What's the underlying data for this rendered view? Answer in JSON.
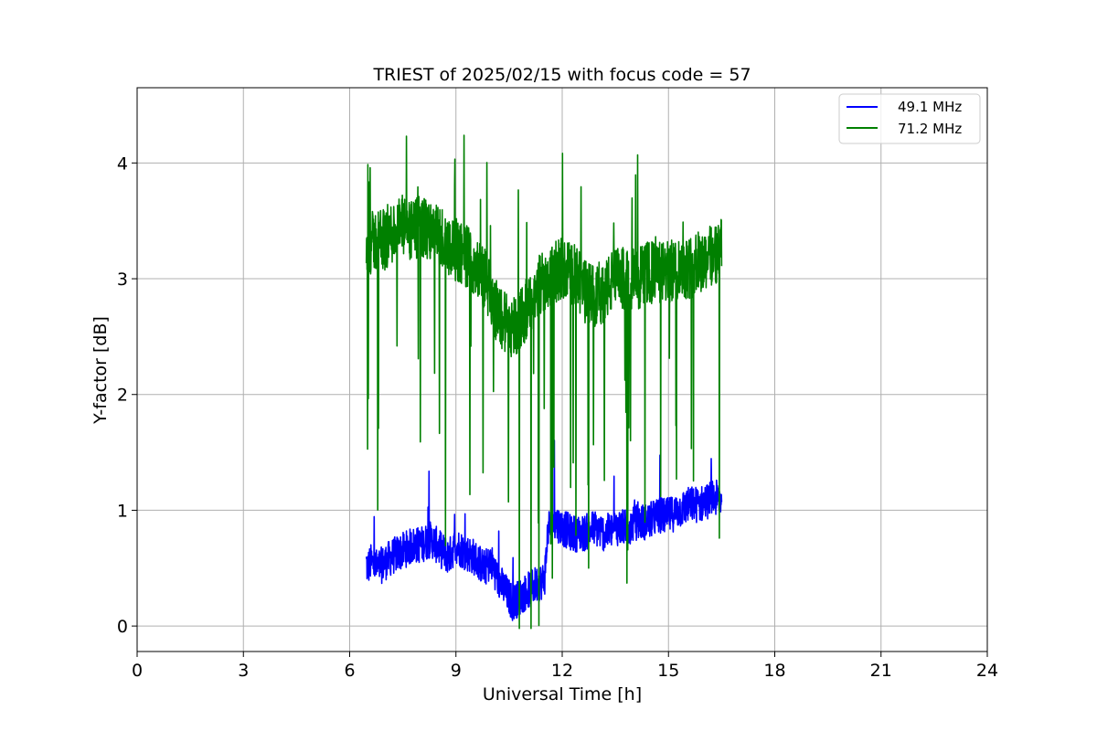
{
  "chart_data": {
    "type": "line",
    "title": "TRIEST of 2025/02/15 with focus code = 57",
    "xlabel": "Universal Time [h]",
    "ylabel": "Y-factor [dB]",
    "xlim": [
      0,
      24
    ],
    "ylim": [
      -0.22,
      4.65
    ],
    "xticks": [
      0,
      3,
      6,
      9,
      12,
      15,
      18,
      21,
      24
    ],
    "xtick_labels": [
      "0",
      "3",
      "6",
      "9",
      "12",
      "15",
      "18",
      "21",
      "24"
    ],
    "yticks": [
      0,
      1,
      2,
      3,
      4
    ],
    "ytick_labels": [
      "0",
      "1",
      "2",
      "3",
      "4"
    ],
    "grid": true,
    "legend_position": "top-right",
    "series": [
      {
        "name": "49.1 MHz",
        "color": "#0000ff",
        "x": [
          6.47,
          6.5,
          6.6,
          6.8,
          7.0,
          7.2,
          7.5,
          7.8,
          8.0,
          8.3,
          8.6,
          8.8,
          9.0,
          9.2,
          9.5,
          9.8,
          10.0,
          10.2,
          10.4,
          10.6,
          10.8,
          11.0,
          11.2,
          11.5,
          11.6,
          11.8,
          12.0,
          12.3,
          12.6,
          12.9,
          13.2,
          13.5,
          13.8,
          14.1,
          14.4,
          14.7,
          15.0,
          15.3,
          15.6,
          15.9,
          16.2,
          16.5
        ],
        "y": [
          0.55,
          0.5,
          0.55,
          0.5,
          0.55,
          0.6,
          0.65,
          0.7,
          0.7,
          0.75,
          0.65,
          0.6,
          0.7,
          0.65,
          0.6,
          0.5,
          0.55,
          0.4,
          0.3,
          0.2,
          0.25,
          0.3,
          0.35,
          0.4,
          0.85,
          0.9,
          0.85,
          0.8,
          0.8,
          0.85,
          0.8,
          0.85,
          0.85,
          0.9,
          0.9,
          0.95,
          0.95,
          1.0,
          1.05,
          1.05,
          1.1,
          1.1
        ],
        "spread": 0.32
      },
      {
        "name": "71.2 MHz",
        "color": "#008000",
        "x": [
          6.47,
          6.6,
          6.8,
          7.0,
          7.2,
          7.5,
          7.8,
          8.0,
          8.3,
          8.6,
          8.8,
          9.0,
          9.3,
          9.6,
          9.9,
          10.1,
          10.3,
          10.5,
          10.7,
          10.9,
          11.1,
          11.3,
          11.5,
          11.8,
          12.0,
          12.3,
          12.6,
          12.9,
          13.2,
          13.5,
          13.8,
          14.1,
          14.4,
          14.7,
          15.0,
          15.3,
          15.6,
          15.9,
          16.2,
          16.5
        ],
        "y": [
          3.3,
          3.3,
          3.35,
          3.35,
          3.4,
          3.45,
          3.4,
          3.45,
          3.4,
          3.35,
          3.3,
          3.25,
          3.2,
          3.1,
          2.95,
          2.75,
          2.65,
          2.6,
          2.6,
          2.7,
          2.75,
          2.9,
          3.0,
          3.05,
          3.1,
          3.05,
          2.9,
          2.85,
          2.9,
          3.0,
          3.0,
          3.0,
          3.05,
          3.05,
          3.05,
          3.1,
          3.1,
          3.15,
          3.2,
          3.25
        ],
        "spread": 0.55
      }
    ]
  }
}
